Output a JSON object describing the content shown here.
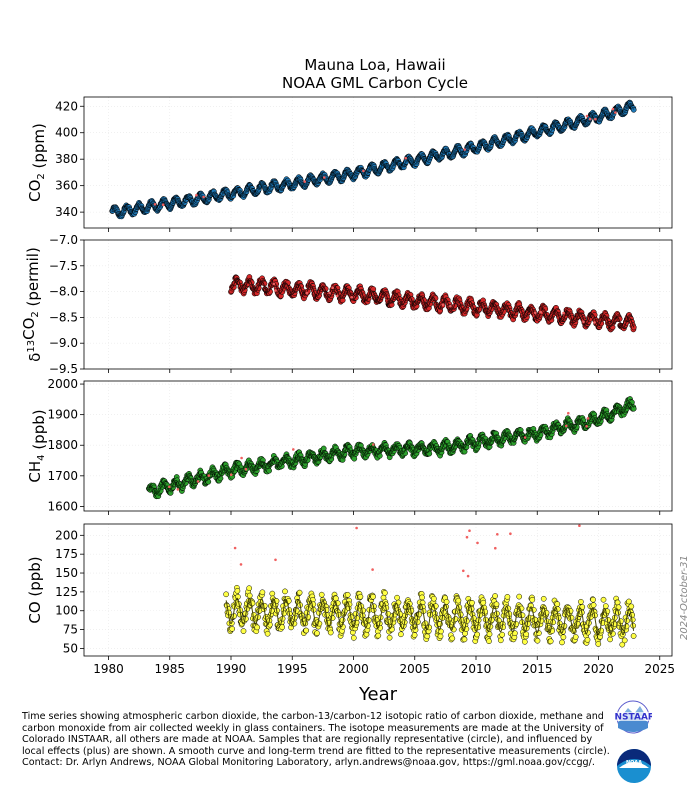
{
  "page": {
    "title_line1": "Mauna Loa, Hawaii",
    "title_line2": "NOAA GML Carbon Cycle",
    "caption": "Time series showing atmospheric carbon dioxide, the carbon-13/carbon-12 isotopic ratio of carbon dioxide, methane and carbon monoxide from air collected weekly in glass containers.  The isotope measurements are made at the University of Colorado INSTAAR, all others are made at NOAA.  Samples that are regionally representative (circle), and influenced by local effects (plus) are shown. A smooth curve and long-term trend are fitted to the representative measurements (circle).  Contact:  Dr. Arlyn Andrews, NOAA Global Monitoring Laboratory, arlyn.andrews@noaa.gov, https://gml.noaa.gov/ccgg/.",
    "datestamp": "2024-October-31",
    "instaar_logo_text": "INSTAAR",
    "noaa_logo_text": "NOAA"
  },
  "chart_data": [
    {
      "type": "scatter",
      "id": "co2",
      "ylabel_main": "CO",
      "ylabel_sub": "2",
      "ylabel_unit": " (ppm)",
      "xlim": [
        1978,
        2026
      ],
      "ylim": [
        328,
        427
      ],
      "yticks": [
        340,
        360,
        380,
        400,
        420
      ],
      "grid": true,
      "color": "#1f77b4",
      "line_color": "#0b3c5d",
      "x_start": 1980.3,
      "x_end": 2022.9,
      "trend": {
        "x": [
          1980,
          1990,
          2000,
          2010,
          2020,
          2023
        ],
        "y": [
          339,
          354,
          369,
          389,
          412,
          420
        ]
      },
      "season_amplitude": 3.5,
      "noise": 0.9
    },
    {
      "type": "scatter",
      "id": "d13c",
      "ylabel_prefix": "δ",
      "ylabel_sup": "13",
      "ylabel_main": "CO",
      "ylabel_sub": "2",
      "ylabel_unit": " (permil)",
      "xlim": [
        1978,
        2026
      ],
      "ylim": [
        -9.5,
        -7.0
      ],
      "yticks": [
        -9.5,
        -9.0,
        -8.5,
        -8.0,
        -7.5,
        -7.0
      ],
      "ytick_labels": [
        "−9.5",
        "−9.0",
        "−8.5",
        "−8.0",
        "−7.5",
        "−7.0"
      ],
      "grid": true,
      "color": "#d62728",
      "line_color": "#3a0a0a",
      "x_start": 1990.0,
      "x_end": 2022.9,
      "trend": {
        "x": [
          1990,
          2000,
          2010,
          2020,
          2023
        ],
        "y": [
          -7.85,
          -8.05,
          -8.3,
          -8.55,
          -8.62
        ]
      },
      "season_amplitude": 0.12,
      "noise": 0.05
    },
    {
      "type": "scatter",
      "id": "ch4",
      "ylabel_main": "CH",
      "ylabel_sub": "4",
      "ylabel_unit": " (ppb)",
      "xlim": [
        1978,
        2026
      ],
      "ylim": [
        1585,
        2010
      ],
      "yticks": [
        1600,
        1700,
        1800,
        1900,
        2000
      ],
      "grid": true,
      "color": "#2ca02c",
      "line_color": "#0a3a0a",
      "x_start": 1983.3,
      "x_end": 2022.9,
      "trend": {
        "x": [
          1983,
          1990,
          2000,
          2007,
          2015,
          2020,
          2023
        ],
        "y": [
          1645,
          1718,
          1780,
          1790,
          1840,
          1885,
          1935
        ]
      },
      "season_amplitude": 16,
      "noise": 10
    },
    {
      "type": "scatter",
      "id": "co",
      "ylabel_main": "CO",
      "ylabel_sub": "",
      "ylabel_unit": " (ppb)",
      "xlabel": "Year",
      "xlim": [
        1978,
        2026
      ],
      "ylim": [
        40,
        215
      ],
      "yticks": [
        50,
        75,
        100,
        125,
        150,
        175,
        200
      ],
      "xticks": [
        1980,
        1985,
        1990,
        1995,
        2000,
        2005,
        2010,
        2015,
        2020,
        2025
      ],
      "grid": true,
      "color": "#ffff44",
      "line_color": "#444400",
      "x_start": 1989.6,
      "x_end": 2022.9,
      "trend": {
        "x": [
          1990,
          2000,
          2010,
          2023
        ],
        "y": [
          100,
          95,
          90,
          85
        ]
      },
      "season_amplitude": 20,
      "noise": 12
    }
  ]
}
